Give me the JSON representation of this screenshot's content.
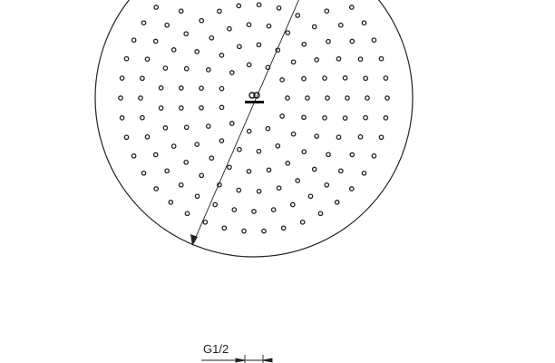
{
  "dimension_label": "G1/2"
}
